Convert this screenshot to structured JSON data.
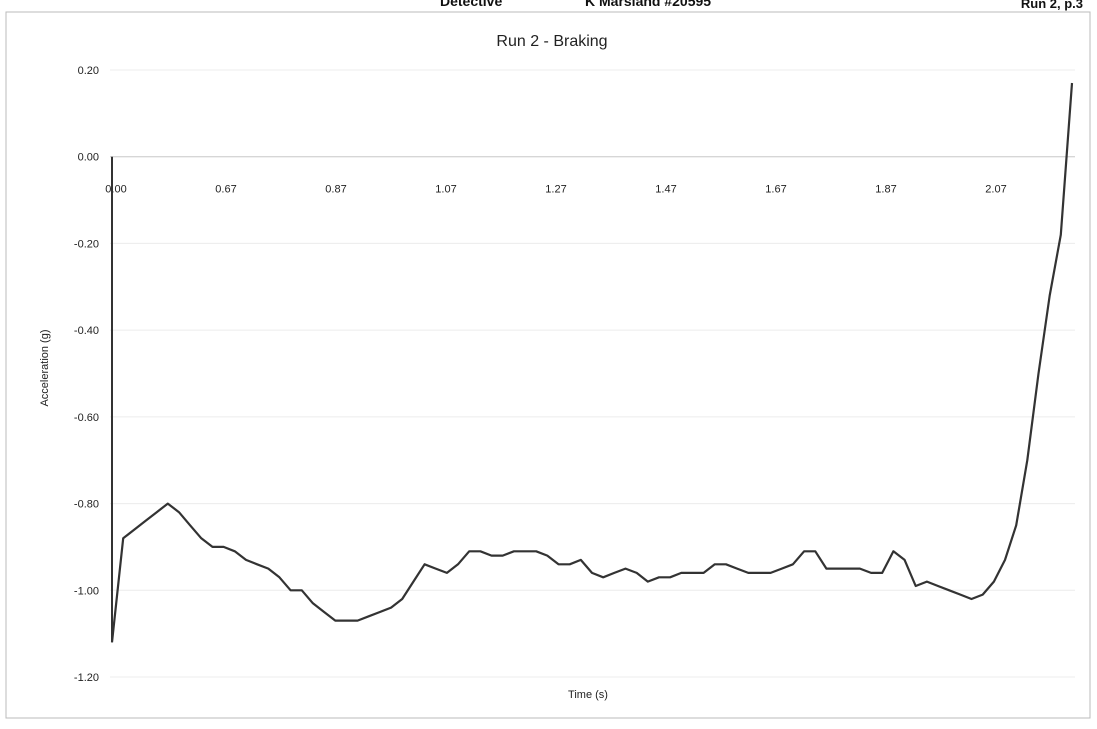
{
  "header": {
    "left": "Detective",
    "middle": "K Marsland #20595",
    "right": "Run 2, p.3"
  },
  "chart_data": {
    "type": "line",
    "title": "Run 2 - Braking",
    "xlabel": "Time (s)",
    "ylabel": "Acceleration (g)",
    "ylim": [
      -1.2,
      0.2
    ],
    "y_ticks": [
      "0.20",
      "0.00",
      "-0.20",
      "-0.40",
      "-0.60",
      "-0.80",
      "-1.00",
      "-1.20"
    ],
    "x_tick_labels": [
      "0.00",
      "0.67",
      "0.87",
      "1.07",
      "1.27",
      "1.47",
      "1.67",
      "1.87",
      "2.07"
    ],
    "grid": true,
    "legend": "none",
    "line_color": "#333333",
    "series": [
      {
        "values": [
          -1.12,
          -0.88,
          -0.86,
          -0.84,
          -0.82,
          -0.8,
          -0.82,
          -0.85,
          -0.88,
          -0.9,
          -0.9,
          -0.91,
          -0.93,
          -0.94,
          -0.95,
          -0.97,
          -1.0,
          -1.0,
          -1.03,
          -1.05,
          -1.07,
          -1.07,
          -1.07,
          -1.06,
          -1.05,
          -1.04,
          -1.02,
          -0.98,
          -0.94,
          -0.95,
          -0.96,
          -0.94,
          -0.91,
          -0.91,
          -0.92,
          -0.92,
          -0.91,
          -0.91,
          -0.91,
          -0.92,
          -0.94,
          -0.94,
          -0.93,
          -0.96,
          -0.97,
          -0.96,
          -0.95,
          -0.96,
          -0.98,
          -0.97,
          -0.97,
          -0.96,
          -0.96,
          -0.96,
          -0.94,
          -0.94,
          -0.95,
          -0.96,
          -0.96,
          -0.96,
          -0.95,
          -0.94,
          -0.91,
          -0.91,
          -0.95,
          -0.95,
          -0.95,
          -0.95,
          -0.96,
          -0.96,
          -0.91,
          -0.93,
          -0.99,
          -0.98,
          -0.99,
          -1.0,
          -1.01,
          -1.02,
          -1.01,
          -0.98,
          -0.93,
          -0.85,
          -0.7,
          -0.5,
          -0.32,
          -0.18,
          0.17
        ]
      }
    ]
  }
}
